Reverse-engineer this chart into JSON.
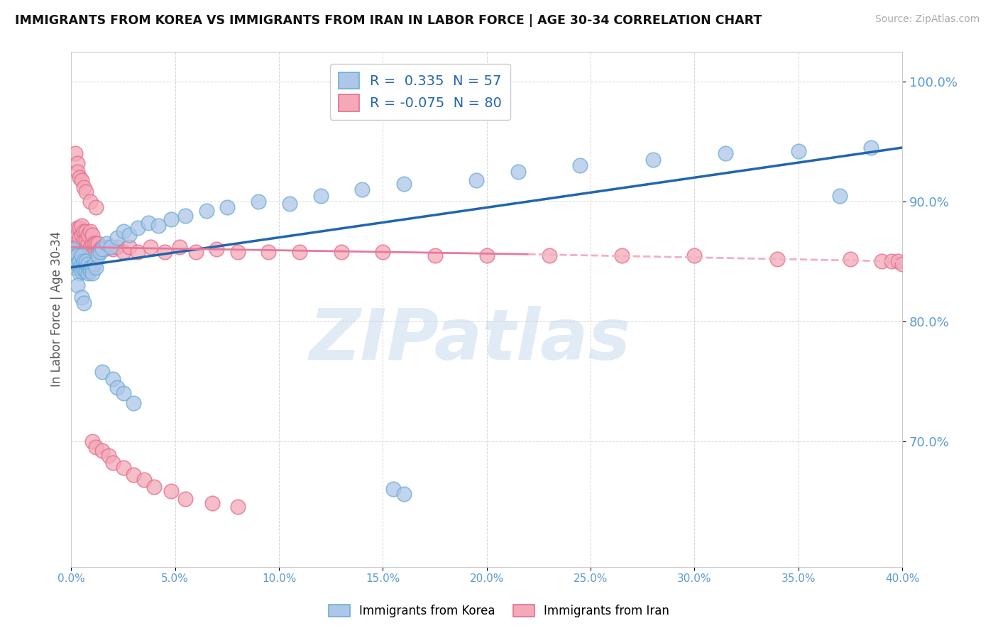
{
  "title": "IMMIGRANTS FROM KOREA VS IMMIGRANTS FROM IRAN IN LABOR FORCE | AGE 30-34 CORRELATION CHART",
  "source": "Source: ZipAtlas.com",
  "ylabel": "In Labor Force | Age 30-34",
  "xlim": [
    0.0,
    0.4
  ],
  "ylim": [
    0.595,
    1.025
  ],
  "xticks": [
    0.0,
    0.05,
    0.1,
    0.15,
    0.2,
    0.25,
    0.3,
    0.35,
    0.4
  ],
  "yticks": [
    0.7,
    0.8,
    0.9,
    1.0
  ],
  "xtick_labels": [
    "0.0%",
    "5.0%",
    "10.0%",
    "15.0%",
    "20.0%",
    "25.0%",
    "30.0%",
    "35.0%",
    "40.0%"
  ],
  "ytick_labels": [
    "70.0%",
    "80.0%",
    "90.0%",
    "100.0%"
  ],
  "korea_color": "#aec6e8",
  "iran_color": "#f4a8b8",
  "korea_edge": "#6baed6",
  "iran_edge": "#e07090",
  "korea_R": 0.335,
  "korea_N": 57,
  "iran_R": -0.075,
  "iran_N": 80,
  "korea_line_color": "#2166ac",
  "iran_line_color": "#e8789a",
  "iran_line_dashed_color": "#f0b0c0",
  "watermark": "ZIPatlas",
  "background_color": "#ffffff",
  "grid_color": "#cccccc",
  "label_color": "#5b9bd5",
  "korea_x": [
    0.001,
    0.002,
    0.002,
    0.003,
    0.003,
    0.003,
    0.004,
    0.004,
    0.004,
    0.005,
    0.005,
    0.005,
    0.005,
    0.006,
    0.006,
    0.006,
    0.006,
    0.007,
    0.007,
    0.007,
    0.007,
    0.008,
    0.008,
    0.008,
    0.009,
    0.009,
    0.01,
    0.01,
    0.011,
    0.012,
    0.013,
    0.014,
    0.015,
    0.017,
    0.019,
    0.022,
    0.025,
    0.028,
    0.032,
    0.037,
    0.042,
    0.048,
    0.055,
    0.065,
    0.075,
    0.09,
    0.105,
    0.12,
    0.14,
    0.16,
    0.195,
    0.215,
    0.245,
    0.28,
    0.315,
    0.35,
    0.385
  ],
  "korea_y": [
    0.86,
    0.855,
    0.845,
    0.85,
    0.855,
    0.848,
    0.845,
    0.84,
    0.85,
    0.845,
    0.848,
    0.842,
    0.855,
    0.848,
    0.845,
    0.85,
    0.843,
    0.845,
    0.848,
    0.842,
    0.85,
    0.845,
    0.84,
    0.848,
    0.845,
    0.842,
    0.845,
    0.84,
    0.848,
    0.845,
    0.855,
    0.858,
    0.86,
    0.865,
    0.862,
    0.87,
    0.875,
    0.872,
    0.878,
    0.882,
    0.88,
    0.885,
    0.888,
    0.892,
    0.895,
    0.9,
    0.898,
    0.905,
    0.91,
    0.915,
    0.918,
    0.925,
    0.93,
    0.935,
    0.94,
    0.942,
    0.945
  ],
  "korea_y_extra": [
    0.83,
    0.82,
    0.815,
    0.758,
    0.752,
    0.745,
    0.74,
    0.732,
    0.66,
    0.656,
    0.905
  ],
  "korea_x_extra": [
    0.003,
    0.005,
    0.006,
    0.015,
    0.02,
    0.022,
    0.025,
    0.03,
    0.155,
    0.16,
    0.37
  ],
  "iran_x": [
    0.001,
    0.001,
    0.002,
    0.002,
    0.002,
    0.003,
    0.003,
    0.003,
    0.004,
    0.004,
    0.004,
    0.004,
    0.005,
    0.005,
    0.005,
    0.005,
    0.005,
    0.006,
    0.006,
    0.006,
    0.006,
    0.007,
    0.007,
    0.007,
    0.007,
    0.008,
    0.008,
    0.008,
    0.009,
    0.009,
    0.009,
    0.01,
    0.01,
    0.01,
    0.011,
    0.011,
    0.012,
    0.012,
    0.013,
    0.013,
    0.014,
    0.015,
    0.016,
    0.018,
    0.02,
    0.022,
    0.025,
    0.028,
    0.032,
    0.038,
    0.045,
    0.052,
    0.06,
    0.07,
    0.08,
    0.095,
    0.11,
    0.13,
    0.15,
    0.175,
    0.2,
    0.23,
    0.265,
    0.3,
    0.34,
    0.375,
    0.39,
    0.395,
    0.398,
    0.4
  ],
  "iran_y": [
    0.855,
    0.862,
    0.858,
    0.865,
    0.872,
    0.855,
    0.862,
    0.878,
    0.858,
    0.862,
    0.87,
    0.878,
    0.855,
    0.858,
    0.862,
    0.872,
    0.88,
    0.855,
    0.862,
    0.868,
    0.875,
    0.855,
    0.862,
    0.868,
    0.875,
    0.858,
    0.865,
    0.872,
    0.855,
    0.862,
    0.875,
    0.858,
    0.865,
    0.872,
    0.858,
    0.865,
    0.858,
    0.865,
    0.858,
    0.865,
    0.86,
    0.862,
    0.86,
    0.862,
    0.86,
    0.862,
    0.858,
    0.862,
    0.858,
    0.862,
    0.858,
    0.862,
    0.858,
    0.86,
    0.858,
    0.858,
    0.858,
    0.858,
    0.858,
    0.855,
    0.855,
    0.855,
    0.855,
    0.855,
    0.852,
    0.852,
    0.85,
    0.85,
    0.85,
    0.848
  ],
  "iran_y_extra": [
    0.94,
    0.932,
    0.925,
    0.92,
    0.918,
    0.912,
    0.908,
    0.9,
    0.895,
    0.7,
    0.695,
    0.692,
    0.688,
    0.682,
    0.678,
    0.672,
    0.668,
    0.662,
    0.658,
    0.652,
    0.648,
    0.645
  ],
  "iran_x_extra": [
    0.002,
    0.003,
    0.003,
    0.004,
    0.005,
    0.006,
    0.007,
    0.009,
    0.012,
    0.01,
    0.012,
    0.015,
    0.018,
    0.02,
    0.025,
    0.03,
    0.035,
    0.04,
    0.048,
    0.055,
    0.068,
    0.08
  ]
}
